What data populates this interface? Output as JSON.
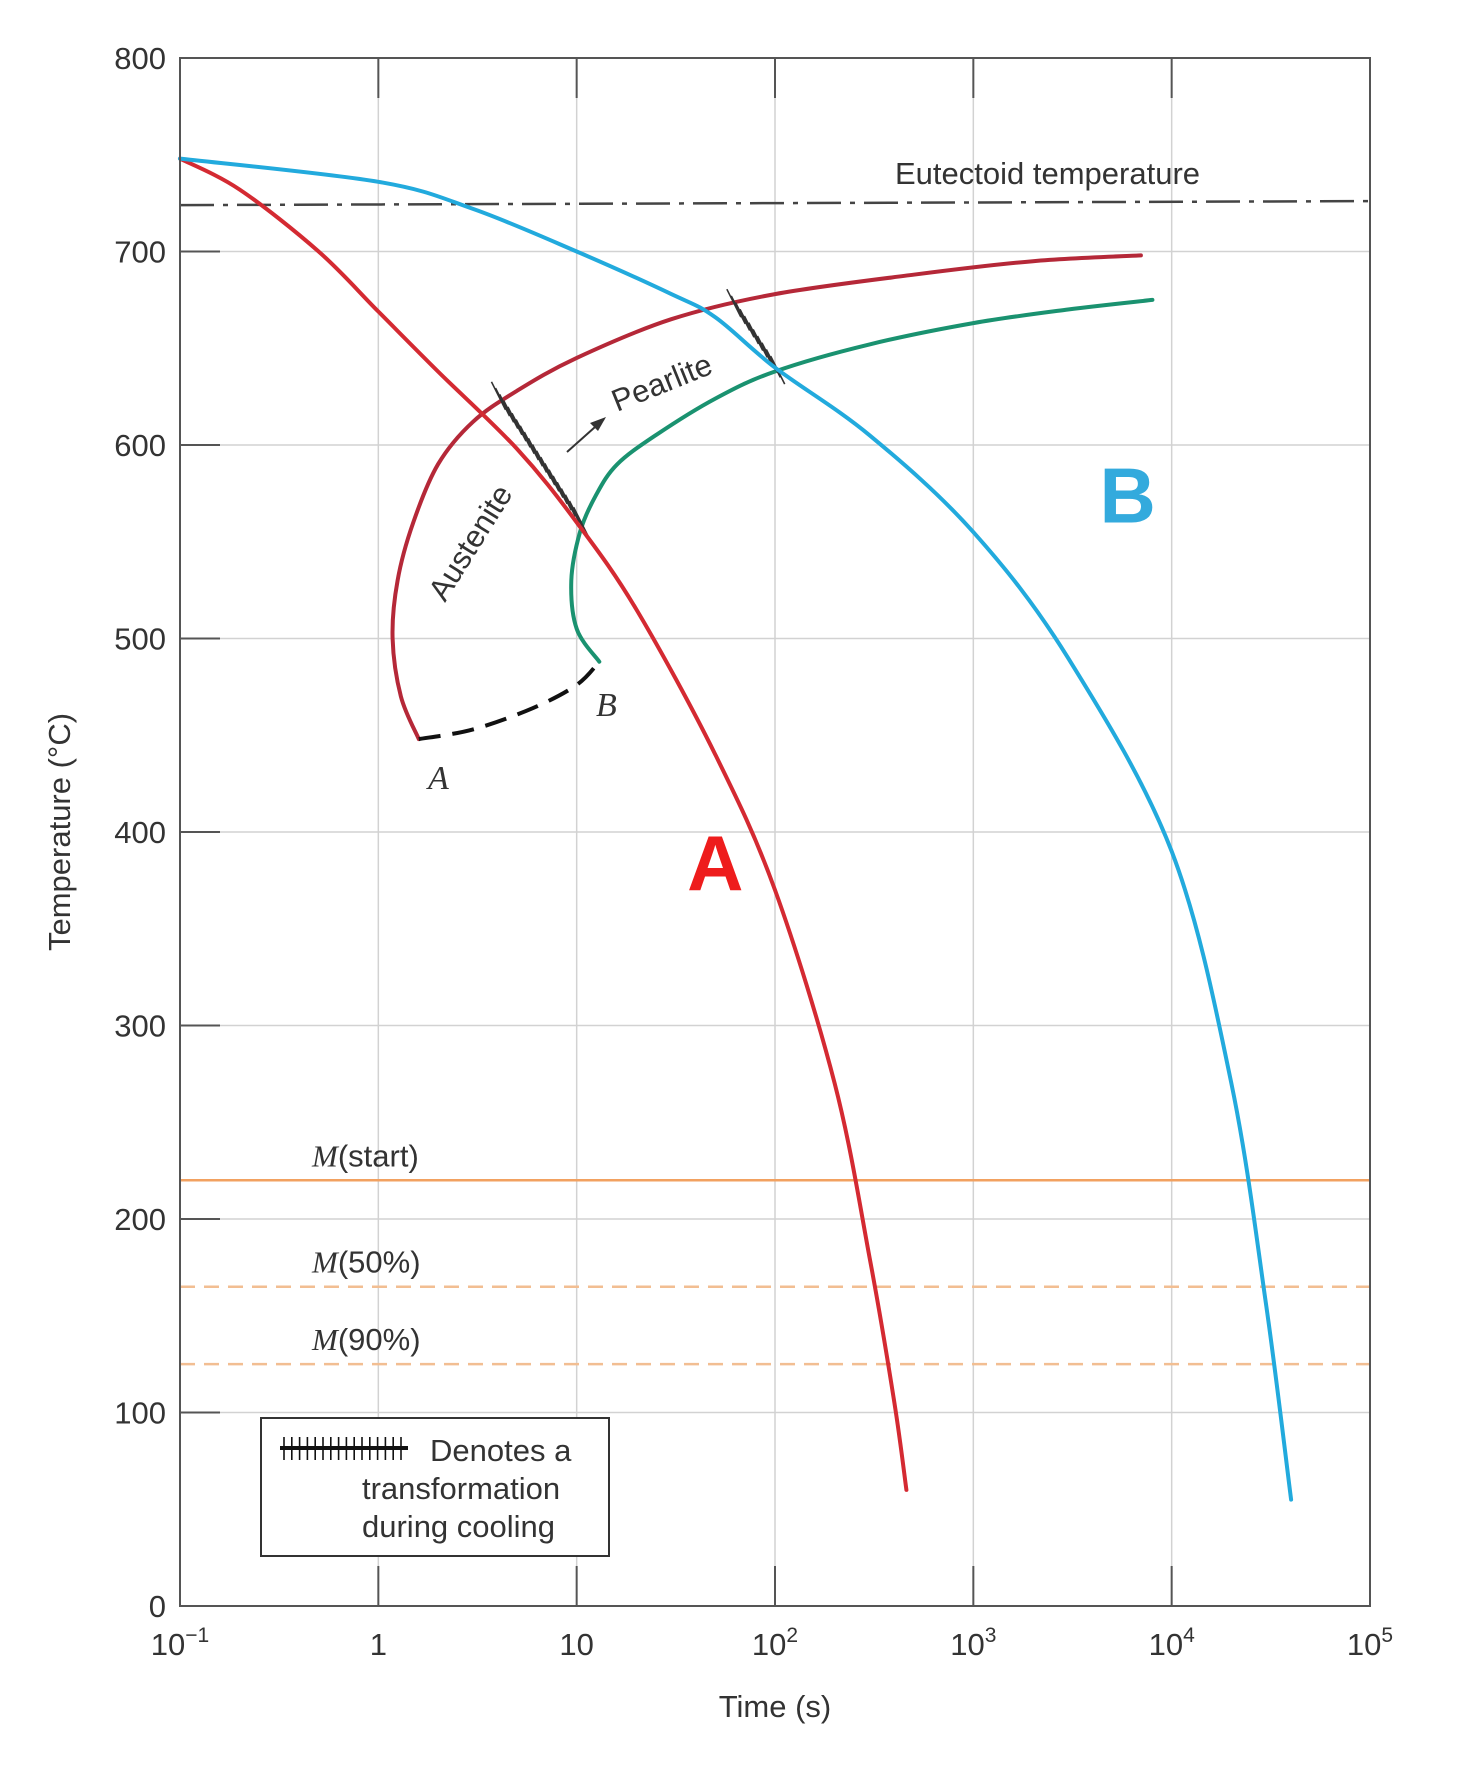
{
  "chart_data": {
    "type": "line",
    "xlabel": "Time (s)",
    "ylabel": "Temperature (°C)",
    "x_scale": "log",
    "xlim": [
      0.1,
      100000
    ],
    "ylim": [
      0,
      800
    ],
    "x_ticks": [
      {
        "value": 0.1,
        "base": "10",
        "exp": "−1"
      },
      {
        "value": 1,
        "base": "1",
        "exp": ""
      },
      {
        "value": 10,
        "base": "10",
        "exp": ""
      },
      {
        "value": 100,
        "base": "10",
        "exp": "2"
      },
      {
        "value": 1000,
        "base": "10",
        "exp": "3"
      },
      {
        "value": 10000,
        "base": "10",
        "exp": "4"
      },
      {
        "value": 100000,
        "base": "10",
        "exp": "5"
      }
    ],
    "y_ticks": [
      "0",
      "100",
      "200",
      "300",
      "400",
      "500",
      "600",
      "700",
      "800"
    ],
    "grid": true,
    "cooling_curves": [
      {
        "name": "A",
        "color": "#d42a32",
        "label_color": "#ee1c1c",
        "label_at": {
          "time": 50,
          "temp": 370
        },
        "points": [
          [
            0.1,
            748
          ],
          [
            0.2,
            732
          ],
          [
            0.5,
            700
          ],
          [
            1,
            669
          ],
          [
            2,
            638
          ],
          [
            5,
            598
          ],
          [
            10,
            560
          ],
          [
            20,
            515
          ],
          [
            50,
            440
          ],
          [
            100,
            370
          ],
          [
            200,
            270
          ],
          [
            300,
            180
          ],
          [
            400,
            105
          ],
          [
            460,
            60
          ]
        ]
      },
      {
        "name": "B",
        "color": "#22aadd",
        "label_color": "#33aadd",
        "label_at": {
          "time": 6000,
          "temp": 560
        },
        "points": [
          [
            0.1,
            748
          ],
          [
            1,
            736
          ],
          [
            3,
            722
          ],
          [
            10,
            700
          ],
          [
            30,
            678
          ],
          [
            50,
            666
          ],
          [
            100,
            640
          ],
          [
            300,
            605
          ],
          [
            1000,
            555
          ],
          [
            3000,
            490
          ],
          [
            10000,
            390
          ],
          [
            20000,
            270
          ],
          [
            30000,
            155
          ],
          [
            40000,
            55
          ]
        ]
      }
    ],
    "transformation_curves": [
      {
        "name": "start",
        "color": "#b52838",
        "points": [
          [
            1.6,
            448
          ],
          [
            1.3,
            470
          ],
          [
            1.18,
            500
          ],
          [
            1.25,
            530
          ],
          [
            1.5,
            560
          ],
          [
            2,
            590
          ],
          [
            3,
            612
          ],
          [
            5,
            628
          ],
          [
            10,
            645
          ],
          [
            30,
            665
          ],
          [
            100,
            678
          ],
          [
            500,
            688
          ],
          [
            2000,
            695
          ],
          [
            7000,
            698
          ]
        ]
      },
      {
        "name": "finish",
        "color": "#1a9270",
        "points": [
          [
            13,
            488
          ],
          [
            10,
            505
          ],
          [
            9.4,
            530
          ],
          [
            10.4,
            555
          ],
          [
            12.5,
            574
          ],
          [
            16,
            590
          ],
          [
            25,
            605
          ],
          [
            50,
            624
          ],
          [
            100,
            638
          ],
          [
            300,
            652
          ],
          [
            1000,
            663
          ],
          [
            3000,
            670
          ],
          [
            8000,
            675
          ]
        ]
      }
    ],
    "dashed_segment": {
      "color": "#111111",
      "points": [
        [
          1.6,
          448
        ],
        [
          3,
          453
        ],
        [
          6,
          464
        ],
        [
          10,
          476
        ],
        [
          13,
          488
        ]
      ]
    },
    "eutectoid": {
      "label": "Eutectoid temperature",
      "temp": 725
    },
    "martensite_lines": [
      {
        "letter": "M",
        "suffix": "(start)",
        "temp": 220,
        "style": "solid",
        "color": "#f2a160"
      },
      {
        "letter": "M",
        "suffix": "(50%)",
        "temp": 165,
        "style": "dashed",
        "color": "#f2be92"
      },
      {
        "letter": "M",
        "suffix": "(90%)",
        "temp": 125,
        "style": "dashed",
        "color": "#f2be92"
      }
    ],
    "hatch_regions": [
      {
        "time": 6.5,
        "temp": 593,
        "len": 150
      },
      {
        "time": 80,
        "temp": 656,
        "len": 80
      }
    ],
    "labels": {
      "austenite": "Austenite",
      "pearlite": "Pearlite",
      "point_a": "A",
      "point_b": "B"
    },
    "legend": {
      "position": "bottom-left",
      "lines": [
        "Denotes a",
        "transformation",
        "during cooling"
      ]
    }
  }
}
